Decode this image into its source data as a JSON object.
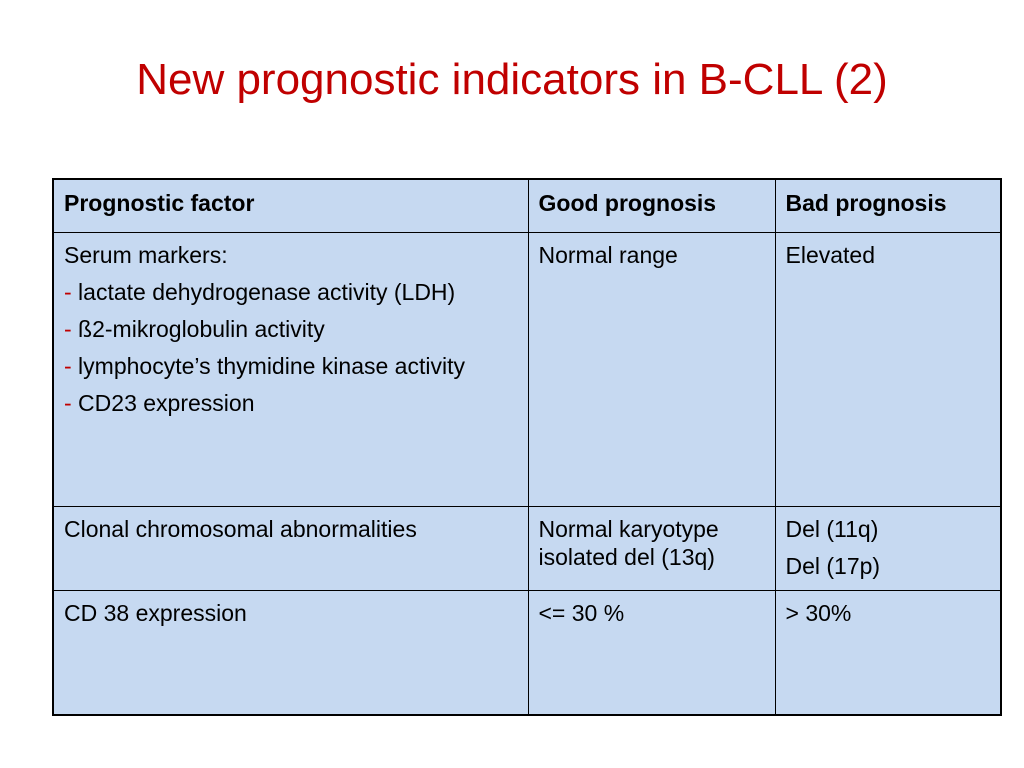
{
  "title": "New prognostic indicators in B-CLL (2)",
  "table": {
    "headers": [
      "Prognostic factor",
      "Good prognosis",
      "Bad prognosis"
    ],
    "rows": [
      {
        "factor_heading": "Serum markers:",
        "factor_items": [
          {
            "dash": "-",
            "text": " lactate dehydrogenase activity (LDH)"
          },
          {
            "dash": "-",
            "text": " ß2-mikroglobulin activity"
          },
          {
            "dash": "-",
            "text": " lymphocyte’s thymidine kinase activity"
          },
          {
            "dash": "-",
            "text": " CD23 expression"
          }
        ],
        "good": "Normal range",
        "bad": "Elevated"
      },
      {
        "factor": "Clonal chromosomal abnormalities",
        "good": "Normal karyotype isolated del (13q)",
        "bad_lines": [
          "Del (11q)",
          "Del (17p)"
        ]
      },
      {
        "factor": "CD 38 expression",
        "good": "<= 30 %",
        "bad": "> 30%"
      }
    ]
  },
  "colors": {
    "title": "#c00000",
    "table_fill": "#c6d9f1",
    "dash": "#c00000"
  }
}
